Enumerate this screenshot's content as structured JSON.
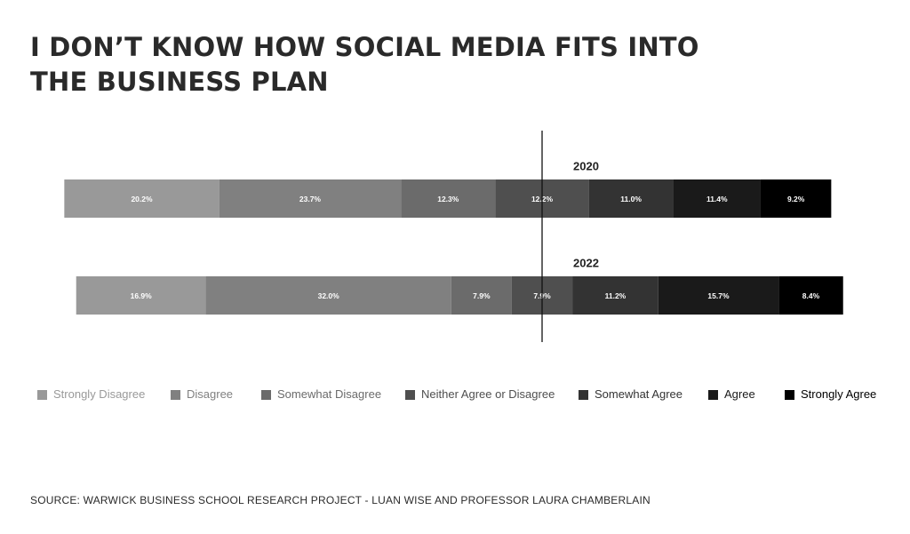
{
  "title_lines": [
    "I DON’T KNOW HOW SOCIAL MEDIA FITS INTO",
    "THE BUSINESS PLAN"
  ],
  "source": "SOURCE: WARWICK BUSINESS SCHOOL RESEARCH PROJECT - LUAN WISE AND PROFESSOR LAURA CHAMBERLAIN",
  "colors": {
    "Strongly Disagree": "#999999",
    "Disagree": "#808080",
    "Somewhat Disagree": "#6b6b6b",
    "Neither Agree or Disagree": "#4f4f4f",
    "Somewhat Agree": "#333333",
    "Agree": "#1a1a1a",
    "Strongly Agree": "#000000"
  },
  "legend_text_colors": {
    "Strongly Disagree": "#999999",
    "Disagree": "#808080",
    "Somewhat Disagree": "#6b6b6b",
    "Neither Agree or Disagree": "#4f4f4f",
    "Somewhat Agree": "#333333",
    "Agree": "#1a1a1a",
    "Strongly Agree": "#000000"
  },
  "chart_data": {
    "type": "bar",
    "orientation": "horizontal",
    "stacked": true,
    "diverging": true,
    "center_category": "Neither Agree or Disagree",
    "categories": [
      "2020",
      "2022"
    ],
    "series": [
      {
        "name": "Strongly Disagree",
        "values": [
          20.2,
          16.9
        ],
        "labels": [
          "20.2%",
          "16.9%"
        ]
      },
      {
        "name": "Disagree",
        "values": [
          23.7,
          32.0
        ],
        "labels": [
          "23.7%",
          "32.0%"
        ]
      },
      {
        "name": "Somewhat Disagree",
        "values": [
          12.3,
          7.9
        ],
        "labels": [
          "12.3%",
          "7.9%"
        ]
      },
      {
        "name": "Neither Agree or Disagree",
        "values": [
          12.2,
          7.9
        ],
        "labels": [
          "12.2%",
          "7.9%"
        ]
      },
      {
        "name": "Somewhat Agree",
        "values": [
          11.0,
          11.2
        ],
        "labels": [
          "11.0%",
          "11.2%"
        ]
      },
      {
        "name": "Agree",
        "values": [
          11.4,
          15.7
        ],
        "labels": [
          "11.4%",
          "15.7%"
        ]
      },
      {
        "name": "Strongly Agree",
        "values": [
          9.2,
          8.4
        ],
        "labels": [
          "9.2%",
          "8.4%"
        ]
      }
    ],
    "legend_position": "bottom",
    "grid": false
  }
}
